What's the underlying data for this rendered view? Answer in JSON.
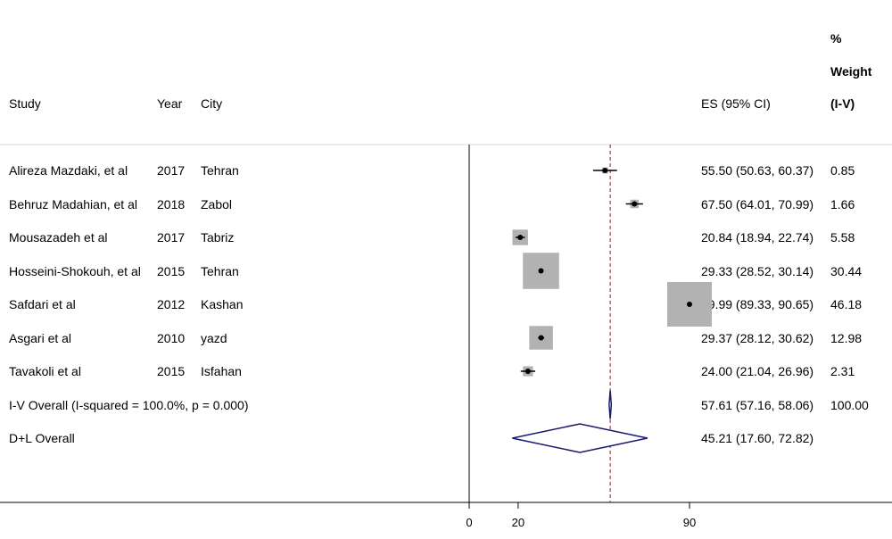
{
  "headers": {
    "study": "Study",
    "year": "Year",
    "city": "City",
    "es": "ES (95% CI)",
    "weight_line1": "%",
    "weight_line2": "Weight",
    "weight_line3": "(I-V)"
  },
  "chart_data": {
    "type": "forest",
    "xticks": [
      0,
      20,
      90
    ],
    "reference_line": 57.61,
    "studies": [
      {
        "study": "Alireza Mazdaki, et al",
        "year": "2017",
        "city": "Tehran",
        "es": 55.5,
        "lo": 50.63,
        "hi": 60.37,
        "ci_text": "55.50 (50.63, 60.37)",
        "weight": 0.85,
        "weight_text": "0.85"
      },
      {
        "study": "Behruz Madahian, et al",
        "year": "2018",
        "city": "Zabol",
        "es": 67.5,
        "lo": 64.01,
        "hi": 70.99,
        "ci_text": "67.50 (64.01, 70.99)",
        "weight": 1.66,
        "weight_text": "1.66"
      },
      {
        "study": "Mousazadeh et al",
        "year": "2017",
        "city": "Tabriz",
        "es": 20.84,
        "lo": 18.94,
        "hi": 22.74,
        "ci_text": "20.84 (18.94, 22.74)",
        "weight": 5.58,
        "weight_text": "5.58"
      },
      {
        "study": "Hosseini-Shokouh, et al",
        "year": "2015",
        "city": "Tehran",
        "es": 29.33,
        "lo": 28.52,
        "hi": 30.14,
        "ci_text": "29.33 (28.52, 30.14)",
        "weight": 30.44,
        "weight_text": "30.44"
      },
      {
        "study": "Safdari et al",
        "year": "2012",
        "city": "Kashan",
        "es": 89.99,
        "lo": 89.33,
        "hi": 90.65,
        "ci_text": "89.99 (89.33, 90.65)",
        "weight": 46.18,
        "weight_text": "46.18"
      },
      {
        "study": "Asgari et al",
        "year": "2010",
        "city": "yazd",
        "es": 29.37,
        "lo": 28.12,
        "hi": 30.62,
        "ci_text": "29.37 (28.12, 30.62)",
        "weight": 12.98,
        "weight_text": "12.98"
      },
      {
        "study": "Tavakoli et al",
        "year": "2015",
        "city": "Isfahan",
        "es": 24.0,
        "lo": 21.04,
        "hi": 26.96,
        "ci_text": "24.00 (21.04, 26.96)",
        "weight": 2.31,
        "weight_text": "2.31"
      }
    ],
    "overall": [
      {
        "label": "I-V Overall  (I-squared = 100.0%, p = 0.000)",
        "es": 57.61,
        "lo": 57.16,
        "hi": 58.06,
        "ci_text": "57.61 (57.16, 58.06)",
        "weight_text": "100.00"
      },
      {
        "label": "D+L Overall",
        "es": 45.21,
        "lo": 17.6,
        "hi": 72.82,
        "ci_text": "45.21 (17.60, 72.82)",
        "weight_text": ""
      }
    ],
    "colors": {
      "marker_box": "#b2b2b2",
      "diamond": "#1a1a6e",
      "reference_line": "#8b1a1a",
      "axis": "#000000"
    }
  }
}
